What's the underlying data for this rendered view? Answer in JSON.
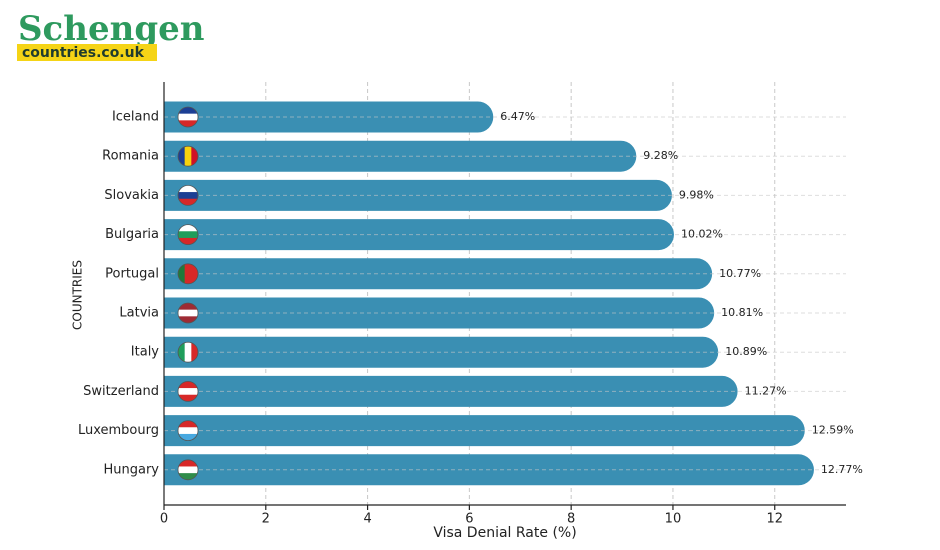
{
  "logo": {
    "title": "Schengen",
    "subtitle": "countries.co.uk"
  },
  "chart_data": {
    "type": "bar",
    "orientation": "horizontal",
    "x_label": "Visa Denial Rate (%)",
    "y_label": "COUNTRIES",
    "categories": [
      "Iceland",
      "Romania",
      "Slovakia",
      "Bulgaria",
      "Portugal",
      "Latvia",
      "Italy",
      "Switzerland",
      "Luxembourg",
      "Hungary"
    ],
    "values": [
      6.47,
      9.28,
      9.98,
      10.02,
      10.77,
      10.81,
      10.89,
      11.27,
      12.59,
      12.77
    ],
    "value_labels": [
      "6.47%",
      "9.28%",
      "9.98%",
      "10.02%",
      "10.77%",
      "10.81%",
      "10.89%",
      "11.27%",
      "12.59%",
      "12.77%"
    ],
    "color": "#3a8fb3",
    "xlim": [
      0,
      13.4
    ],
    "xticks": [
      0,
      2,
      4,
      6,
      8,
      10,
      12
    ],
    "grid": true
  }
}
